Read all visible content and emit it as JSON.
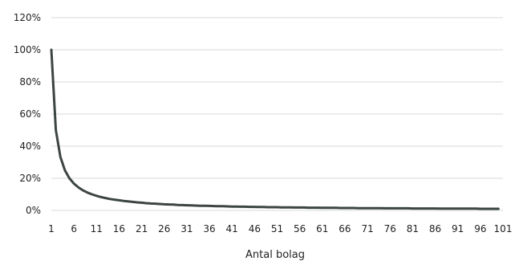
{
  "chart_data": {
    "type": "line",
    "title": "",
    "xlabel": "Antal bolag",
    "ylabel": "",
    "xlim": [
      1,
      101
    ],
    "ylim": [
      0,
      120
    ],
    "x_ticks": [
      "1",
      "6",
      "11",
      "16",
      "21",
      "26",
      "31",
      "36",
      "41",
      "46",
      "51",
      "56",
      "61",
      "66",
      "71",
      "76",
      "81",
      "86",
      "91",
      "96",
      "101"
    ],
    "y_ticks": [
      "0%",
      "20%",
      "40%",
      "60%",
      "80%",
      "100%",
      "120%"
    ],
    "grid": true,
    "legend": "none",
    "series": [
      {
        "color": "#3c4540",
        "x": [
          1,
          2,
          3,
          4,
          5,
          6,
          7,
          8,
          9,
          10,
          11,
          12,
          13,
          14,
          15,
          16,
          17,
          18,
          19,
          20,
          21,
          22,
          23,
          24,
          25,
          26,
          27,
          28,
          29,
          30,
          31,
          32,
          33,
          34,
          35,
          36,
          37,
          38,
          39,
          40,
          41,
          42,
          43,
          44,
          45,
          46,
          47,
          48,
          49,
          50,
          51,
          52,
          53,
          54,
          55,
          56,
          57,
          58,
          59,
          60,
          61,
          62,
          63,
          64,
          65,
          66,
          67,
          68,
          69,
          70,
          71,
          72,
          73,
          74,
          75,
          76,
          77,
          78,
          79,
          80,
          81,
          82,
          83,
          84,
          85,
          86,
          87,
          88,
          89,
          90,
          91,
          92,
          93,
          94,
          95,
          96,
          97,
          98,
          99,
          100
        ],
        "values": [
          100,
          50,
          33.3,
          25,
          20,
          16.7,
          14.3,
          12.5,
          11.1,
          10,
          9.1,
          8.3,
          7.7,
          7.1,
          6.7,
          6.3,
          5.9,
          5.6,
          5.3,
          5,
          4.8,
          4.5,
          4.3,
          4.2,
          4,
          3.8,
          3.7,
          3.6,
          3.4,
          3.3,
          3.2,
          3.1,
          3,
          2.9,
          2.9,
          2.8,
          2.7,
          2.6,
          2.6,
          2.5,
          2.4,
          2.4,
          2.3,
          2.3,
          2.2,
          2.2,
          2.1,
          2.1,
          2,
          2,
          2,
          1.9,
          1.9,
          1.9,
          1.8,
          1.8,
          1.8,
          1.7,
          1.7,
          1.7,
          1.6,
          1.6,
          1.6,
          1.6,
          1.5,
          1.5,
          1.5,
          1.5,
          1.4,
          1.4,
          1.4,
          1.4,
          1.4,
          1.4,
          1.3,
          1.3,
          1.3,
          1.3,
          1.3,
          1.3,
          1.2,
          1.2,
          1.2,
          1.2,
          1.2,
          1.2,
          1.1,
          1.1,
          1.1,
          1.1,
          1.1,
          1.1,
          1.1,
          1.1,
          1.1,
          1,
          1,
          1,
          1,
          1
        ]
      }
    ]
  }
}
